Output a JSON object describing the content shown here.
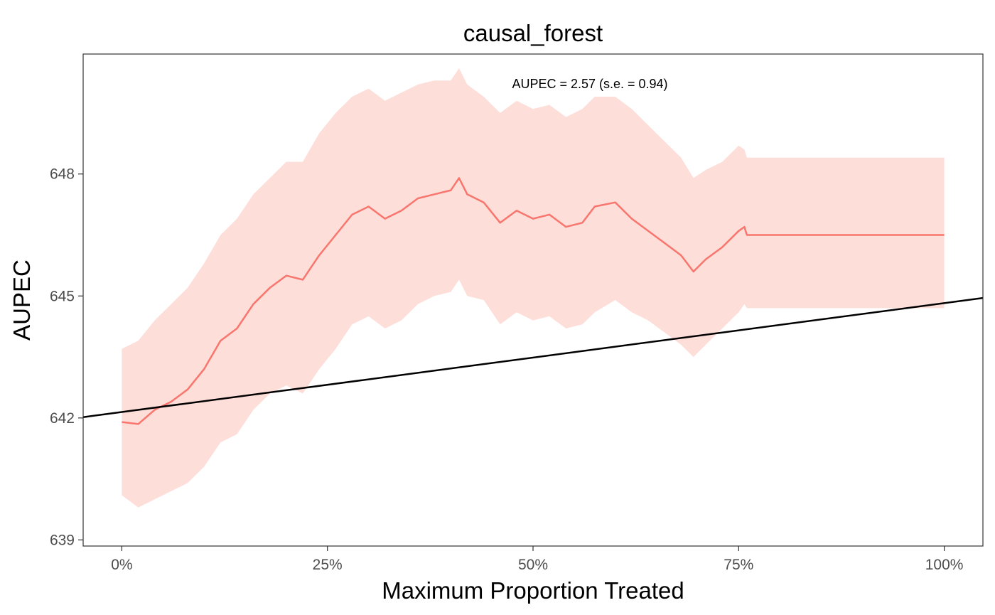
{
  "chart_data": {
    "type": "line",
    "title": "causal_forest",
    "xlabel": "Maximum Proportion Treated",
    "ylabel": "AUPEC",
    "annotation": "AUPEC = 2.57 (s.e. = 0.94)",
    "xlim": [
      -0.047,
      1.047
    ],
    "ylim": [
      638.85,
      650.95
    ],
    "x_ticks": [
      0,
      0.25,
      0.5,
      0.75,
      1
    ],
    "x_tick_labels": [
      "0%",
      "25%",
      "50%",
      "75%",
      "100%"
    ],
    "y_ticks": [
      639,
      642,
      645,
      648
    ],
    "y_tick_labels": [
      "639",
      "642",
      "645",
      "648"
    ],
    "grid": false,
    "legend": "none",
    "colors": {
      "line": "#F8766D",
      "band": "#FDDED9",
      "baseline": "#000000",
      "panel_border": "#333333"
    },
    "series": [
      {
        "kind": "estimate_line",
        "x": [
          0.0,
          0.02,
          0.04,
          0.06,
          0.08,
          0.1,
          0.12,
          0.14,
          0.16,
          0.18,
          0.2,
          0.22,
          0.24,
          0.26,
          0.28,
          0.3,
          0.32,
          0.34,
          0.36,
          0.38,
          0.4,
          0.41,
          0.42,
          0.44,
          0.46,
          0.48,
          0.5,
          0.52,
          0.54,
          0.56,
          0.575,
          0.6,
          0.62,
          0.64,
          0.66,
          0.68,
          0.695,
          0.71,
          0.73,
          0.75,
          0.757,
          0.76,
          0.8,
          0.9,
          1.0
        ],
        "y": [
          641.9,
          641.85,
          642.2,
          642.4,
          642.7,
          643.2,
          643.9,
          644.2,
          644.8,
          645.2,
          645.5,
          645.4,
          646.0,
          646.5,
          647.0,
          647.2,
          646.9,
          647.1,
          647.4,
          647.5,
          647.6,
          647.9,
          647.5,
          647.3,
          646.8,
          647.1,
          646.9,
          647.0,
          646.7,
          646.8,
          647.2,
          647.3,
          646.9,
          646.6,
          646.3,
          646.0,
          645.6,
          645.9,
          646.2,
          646.6,
          646.7,
          646.5,
          646.5,
          646.5,
          646.5
        ]
      },
      {
        "kind": "confidence_band",
        "x": [
          0.0,
          0.02,
          0.04,
          0.06,
          0.08,
          0.1,
          0.12,
          0.14,
          0.16,
          0.18,
          0.2,
          0.22,
          0.24,
          0.26,
          0.28,
          0.3,
          0.32,
          0.34,
          0.36,
          0.38,
          0.4,
          0.41,
          0.42,
          0.44,
          0.46,
          0.48,
          0.5,
          0.52,
          0.54,
          0.56,
          0.575,
          0.6,
          0.62,
          0.64,
          0.66,
          0.68,
          0.695,
          0.71,
          0.73,
          0.75,
          0.757,
          0.76,
          0.8,
          0.9,
          1.0
        ],
        "upper": [
          643.7,
          643.9,
          644.4,
          644.8,
          645.2,
          645.8,
          646.5,
          646.9,
          647.5,
          647.9,
          648.3,
          648.3,
          649.0,
          649.5,
          649.9,
          650.1,
          649.8,
          650.0,
          650.2,
          650.3,
          650.3,
          650.6,
          650.2,
          649.9,
          649.5,
          649.8,
          649.6,
          649.7,
          649.4,
          649.6,
          649.9,
          649.9,
          649.6,
          649.2,
          648.8,
          648.4,
          647.9,
          648.1,
          648.3,
          648.7,
          648.6,
          648.4,
          648.4,
          648.4,
          648.4
        ],
        "lower": [
          640.1,
          639.8,
          640.0,
          640.2,
          640.4,
          640.8,
          641.4,
          641.6,
          642.2,
          642.6,
          642.8,
          642.6,
          643.2,
          643.7,
          644.3,
          644.5,
          644.2,
          644.4,
          644.8,
          645.0,
          645.1,
          645.4,
          645.0,
          644.9,
          644.3,
          644.6,
          644.4,
          644.5,
          644.2,
          644.3,
          644.6,
          644.9,
          644.6,
          644.4,
          644.1,
          643.8,
          643.5,
          643.8,
          644.2,
          644.6,
          644.8,
          644.7,
          644.7,
          644.7,
          644.7
        ]
      },
      {
        "kind": "random_baseline",
        "x": [
          -0.047,
          1.047
        ],
        "y": [
          642.02,
          644.95
        ]
      }
    ]
  }
}
